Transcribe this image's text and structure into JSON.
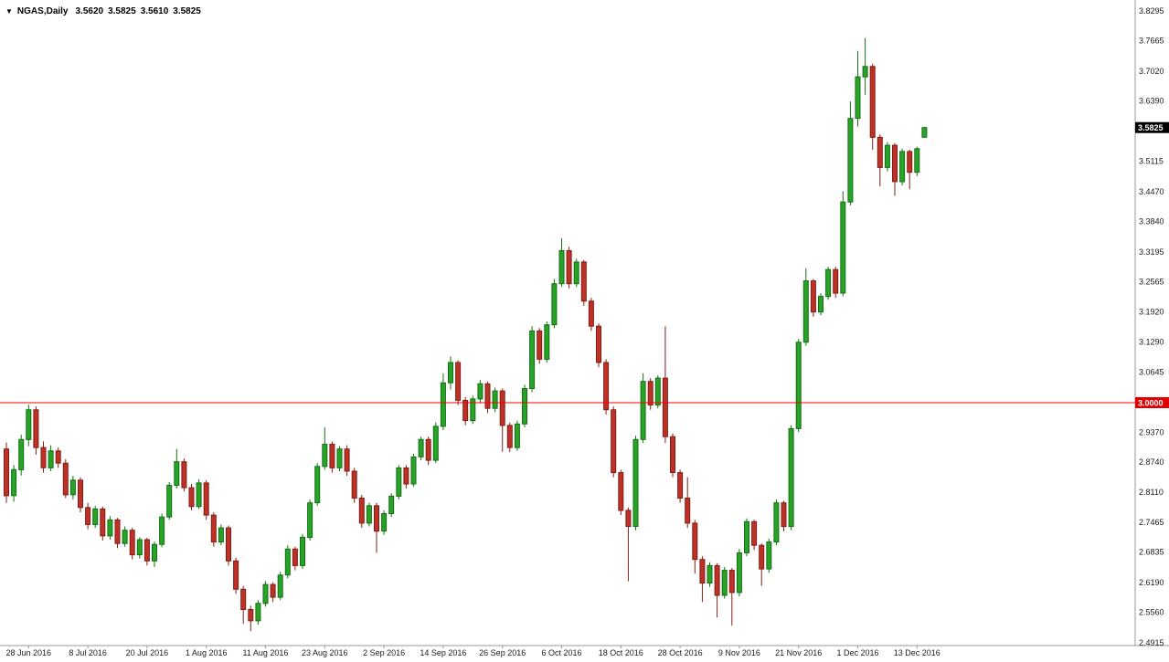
{
  "window": {
    "background": "#ffffff"
  },
  "icons": {
    "symbol_dropdown": "▼"
  },
  "quote_bar": {
    "symbol_period": "NGAS,Daily",
    "open": "3.5620",
    "high": "3.5825",
    "low": "3.5610",
    "close": "3.5825"
  },
  "current_price_tag": {
    "price": 3.5825,
    "label": "3.5825"
  },
  "horizontal_line": {
    "price": 3.0,
    "label": "3.0000"
  },
  "colors": {
    "background": "#ffffff",
    "bull_fill": "#27a327",
    "bull_border": "#156f15",
    "bear_fill": "#bf3126",
    "bear_border": "#7e1f17",
    "axis_line": "#9a9a9a",
    "axis_text": "#1a1a1a",
    "quote_text": "#000000",
    "hline": "#f40000",
    "hline_tag_bg": "#e00000",
    "hline_tag_text": "#ffffff",
    "current_price_bg": "#000000",
    "current_price_text": "#ffffff"
  },
  "chart_data": {
    "type": "candlestick",
    "title": "NGAS Daily",
    "symbol": "NGAS",
    "timeframe": "Daily",
    "ylim": [
      2.4915,
      3.8295
    ],
    "grid": false,
    "y_ticks": [
      "3.8295",
      "3.7665",
      "3.7020",
      "3.6390",
      "3.5115",
      "3.4470",
      "3.3840",
      "3.3195",
      "3.2565",
      "3.1920",
      "3.1290",
      "3.0645",
      "2.9370",
      "2.8740",
      "2.8110",
      "2.7465",
      "2.6835",
      "2.6190",
      "2.5560",
      "2.4915"
    ],
    "x_ticks": [
      {
        "label": "28 Jun 2016",
        "candle_index": 3
      },
      {
        "label": "8 Jul 2016",
        "candle_index": 11
      },
      {
        "label": "20 Jul 2016",
        "candle_index": 19
      },
      {
        "label": "1 Aug 2016",
        "candle_index": 27
      },
      {
        "label": "11 Aug 2016",
        "candle_index": 35
      },
      {
        "label": "23 Aug 2016",
        "candle_index": 43
      },
      {
        "label": "2 Sep 2016",
        "candle_index": 51
      },
      {
        "label": "14 Sep 2016",
        "candle_index": 59
      },
      {
        "label": "26 Sep 2016",
        "candle_index": 67
      },
      {
        "label": "6 Oct 2016",
        "candle_index": 75
      },
      {
        "label": "18 Oct 2016",
        "candle_index": 83
      },
      {
        "label": "28 Oct 2016",
        "candle_index": 91
      },
      {
        "label": "9 Nov 2016",
        "candle_index": 99
      },
      {
        "label": "21 Nov 2016",
        "candle_index": 107
      },
      {
        "label": "1 Dec 2016",
        "candle_index": 115
      },
      {
        "label": "13 Dec 2016",
        "candle_index": 123
      }
    ],
    "columns": [
      "date",
      "open",
      "high",
      "low",
      "close"
    ],
    "candles": [
      [
        "2016-06-23",
        2.902,
        2.916,
        2.788,
        2.803
      ],
      [
        "2016-06-24",
        2.803,
        2.868,
        2.79,
        2.858
      ],
      [
        "2016-06-27",
        2.858,
        2.932,
        2.846,
        2.922
      ],
      [
        "2016-06-28",
        2.922,
        2.996,
        2.908,
        2.985
      ],
      [
        "2016-06-29",
        2.985,
        2.992,
        2.89,
        2.905
      ],
      [
        "2016-06-30",
        2.905,
        2.918,
        2.852,
        2.862
      ],
      [
        "2016-07-01",
        2.862,
        2.91,
        2.855,
        2.898
      ],
      [
        "2016-07-04",
        2.898,
        2.905,
        2.862,
        2.872
      ],
      [
        "2016-07-05",
        2.872,
        2.88,
        2.798,
        2.805
      ],
      [
        "2016-07-06",
        2.805,
        2.845,
        2.795,
        2.836
      ],
      [
        "2016-07-07",
        2.836,
        2.842,
        2.768,
        2.778
      ],
      [
        "2016-07-08",
        2.778,
        2.788,
        2.732,
        2.742
      ],
      [
        "2016-07-11",
        2.742,
        2.782,
        2.735,
        2.775
      ],
      [
        "2016-07-12",
        2.775,
        2.78,
        2.708,
        2.718
      ],
      [
        "2016-07-13",
        2.718,
        2.76,
        2.71,
        2.752
      ],
      [
        "2016-07-14",
        2.752,
        2.756,
        2.692,
        2.702
      ],
      [
        "2016-07-15",
        2.702,
        2.738,
        2.695,
        2.73
      ],
      [
        "2016-07-18",
        2.73,
        2.735,
        2.668,
        2.678
      ],
      [
        "2016-07-19",
        2.678,
        2.715,
        2.67,
        2.71
      ],
      [
        "2016-07-20",
        2.71,
        2.714,
        2.655,
        2.665
      ],
      [
        "2016-07-21",
        2.665,
        2.706,
        2.652,
        2.7
      ],
      [
        "2016-07-22",
        2.7,
        2.765,
        2.694,
        2.758
      ],
      [
        "2016-07-25",
        2.758,
        2.832,
        2.752,
        2.825
      ],
      [
        "2016-07-26",
        2.825,
        2.902,
        2.818,
        2.875
      ],
      [
        "2016-07-27",
        2.875,
        2.882,
        2.812,
        2.82
      ],
      [
        "2016-07-28",
        2.82,
        2.828,
        2.772,
        2.78
      ],
      [
        "2016-07-29",
        2.78,
        2.838,
        2.775,
        2.83
      ],
      [
        "2016-08-01",
        2.83,
        2.836,
        2.752,
        2.762
      ],
      [
        "2016-08-02",
        2.762,
        2.768,
        2.695,
        2.705
      ],
      [
        "2016-08-03",
        2.705,
        2.742,
        2.698,
        2.735
      ],
      [
        "2016-08-04",
        2.735,
        2.74,
        2.655,
        2.665
      ],
      [
        "2016-08-05",
        2.665,
        2.672,
        2.595,
        2.605
      ],
      [
        "2016-08-08",
        2.605,
        2.612,
        2.532,
        2.562
      ],
      [
        "2016-08-09",
        2.562,
        2.57,
        2.516,
        2.538
      ],
      [
        "2016-08-10",
        2.538,
        2.582,
        2.53,
        2.575
      ],
      [
        "2016-08-11",
        2.575,
        2.622,
        2.568,
        2.615
      ],
      [
        "2016-08-12",
        2.615,
        2.62,
        2.578,
        2.588
      ],
      [
        "2016-08-15",
        2.588,
        2.642,
        2.582,
        2.635
      ],
      [
        "2016-08-16",
        2.635,
        2.698,
        2.628,
        2.69
      ],
      [
        "2016-08-17",
        2.69,
        2.695,
        2.645,
        2.655
      ],
      [
        "2016-08-18",
        2.655,
        2.722,
        2.648,
        2.715
      ],
      [
        "2016-08-19",
        2.715,
        2.795,
        2.708,
        2.788
      ],
      [
        "2016-08-22",
        2.788,
        2.872,
        2.782,
        2.865
      ],
      [
        "2016-08-23",
        2.865,
        2.948,
        2.858,
        2.912
      ],
      [
        "2016-08-24",
        2.912,
        2.918,
        2.852,
        2.862
      ],
      [
        "2016-08-25",
        2.862,
        2.908,
        2.855,
        2.902
      ],
      [
        "2016-08-26",
        2.902,
        2.91,
        2.845,
        2.855
      ],
      [
        "2016-08-29",
        2.855,
        2.862,
        2.788,
        2.798
      ],
      [
        "2016-08-30",
        2.798,
        2.805,
        2.735,
        2.745
      ],
      [
        "2016-08-31",
        2.745,
        2.788,
        2.738,
        2.782
      ],
      [
        "2016-09-01",
        2.782,
        2.788,
        2.682,
        2.728
      ],
      [
        "2016-09-02",
        2.728,
        2.772,
        2.72,
        2.765
      ],
      [
        "2016-09-05",
        2.765,
        2.808,
        2.758,
        2.802
      ],
      [
        "2016-09-06",
        2.802,
        2.868,
        2.795,
        2.862
      ],
      [
        "2016-09-07",
        2.862,
        2.868,
        2.818,
        2.828
      ],
      [
        "2016-09-08",
        2.828,
        2.892,
        2.822,
        2.885
      ],
      [
        "2016-09-09",
        2.885,
        2.928,
        2.878,
        2.922
      ],
      [
        "2016-09-12",
        2.922,
        2.928,
        2.868,
        2.878
      ],
      [
        "2016-09-13",
        2.878,
        2.958,
        2.872,
        2.95
      ],
      [
        "2016-09-14",
        2.95,
        3.062,
        2.942,
        3.042
      ],
      [
        "2016-09-15",
        3.042,
        3.098,
        3.028,
        3.085
      ],
      [
        "2016-09-16",
        3.085,
        3.09,
        2.995,
        3.005
      ],
      [
        "2016-09-19",
        3.005,
        3.012,
        2.952,
        2.962
      ],
      [
        "2016-09-20",
        2.962,
        3.015,
        2.955,
        3.008
      ],
      [
        "2016-09-21",
        3.008,
        3.048,
        3.0,
        3.04
      ],
      [
        "2016-09-22",
        3.04,
        3.045,
        2.978,
        2.988
      ],
      [
        "2016-09-23",
        2.988,
        3.032,
        2.98,
        3.025
      ],
      [
        "2016-09-26",
        3.025,
        3.03,
        2.896,
        2.952
      ],
      [
        "2016-09-27",
        2.952,
        2.958,
        2.895,
        2.905
      ],
      [
        "2016-09-28",
        2.905,
        2.962,
        2.898,
        2.955
      ],
      [
        "2016-09-29",
        2.955,
        3.038,
        2.948,
        3.03
      ],
      [
        "2016-09-30",
        3.03,
        3.162,
        3.022,
        3.152
      ],
      [
        "2016-10-03",
        3.152,
        3.158,
        3.082,
        3.092
      ],
      [
        "2016-10-04",
        3.092,
        3.172,
        3.085,
        3.165
      ],
      [
        "2016-10-05",
        3.165,
        3.262,
        3.158,
        3.252
      ],
      [
        "2016-10-06",
        3.252,
        3.348,
        3.245,
        3.322
      ],
      [
        "2016-10-07",
        3.322,
        3.33,
        3.242,
        3.252
      ],
      [
        "2016-10-10",
        3.252,
        3.305,
        3.245,
        3.298
      ],
      [
        "2016-10-11",
        3.298,
        3.302,
        3.205,
        3.215
      ],
      [
        "2016-10-12",
        3.215,
        3.222,
        3.152,
        3.162
      ],
      [
        "2016-10-13",
        3.162,
        3.168,
        3.075,
        3.085
      ],
      [
        "2016-10-14",
        3.085,
        3.092,
        2.975,
        2.985
      ],
      [
        "2016-10-17",
        2.985,
        2.992,
        2.842,
        2.852
      ],
      [
        "2016-10-18",
        2.852,
        2.858,
        2.762,
        2.772
      ],
      [
        "2016-10-19",
        2.772,
        2.778,
        2.622,
        2.738
      ],
      [
        "2016-10-20",
        2.738,
        2.93,
        2.73,
        2.922
      ],
      [
        "2016-10-21",
        2.922,
        3.062,
        2.915,
        3.045
      ],
      [
        "2016-10-24",
        3.045,
        3.052,
        2.985,
        2.995
      ],
      [
        "2016-10-25",
        2.995,
        3.058,
        2.988,
        3.052
      ],
      [
        "2016-10-26",
        3.052,
        3.162,
        2.915,
        2.928
      ],
      [
        "2016-10-27",
        2.928,
        2.935,
        2.842,
        2.852
      ],
      [
        "2016-10-28",
        2.852,
        2.858,
        2.788,
        2.798
      ],
      [
        "2016-10-31",
        2.798,
        2.842,
        2.735,
        2.745
      ],
      [
        "2016-11-01",
        2.745,
        2.752,
        2.638,
        2.668
      ],
      [
        "2016-11-02",
        2.668,
        2.675,
        2.578,
        2.618
      ],
      [
        "2016-11-03",
        2.618,
        2.662,
        2.61,
        2.655
      ],
      [
        "2016-11-04",
        2.655,
        2.66,
        2.545,
        2.592
      ],
      [
        "2016-11-07",
        2.592,
        2.652,
        2.585,
        2.645
      ],
      [
        "2016-11-08",
        2.645,
        2.65,
        2.528,
        2.598
      ],
      [
        "2016-11-09",
        2.598,
        2.69,
        2.59,
        2.682
      ],
      [
        "2016-11-10",
        2.682,
        2.755,
        2.675,
        2.748
      ],
      [
        "2016-11-11",
        2.748,
        2.752,
        2.688,
        2.698
      ],
      [
        "2016-11-14",
        2.698,
        2.702,
        2.612,
        2.648
      ],
      [
        "2016-11-15",
        2.648,
        2.712,
        2.64,
        2.705
      ],
      [
        "2016-11-16",
        2.705,
        2.795,
        2.698,
        2.788
      ],
      [
        "2016-11-17",
        2.788,
        2.792,
        2.728,
        2.738
      ],
      [
        "2016-11-18",
        2.738,
        2.952,
        2.73,
        2.945
      ],
      [
        "2016-11-21",
        2.945,
        3.135,
        2.938,
        3.128
      ],
      [
        "2016-11-22",
        3.128,
        3.285,
        3.12,
        3.258
      ],
      [
        "2016-11-23",
        3.258,
        3.262,
        3.182,
        3.192
      ],
      [
        "2016-11-24",
        3.192,
        3.232,
        3.185,
        3.225
      ],
      [
        "2016-11-25",
        3.225,
        3.288,
        3.218,
        3.282
      ],
      [
        "2016-11-28",
        3.282,
        3.288,
        3.222,
        3.232
      ],
      [
        "2016-11-29",
        3.232,
        3.448,
        3.225,
        3.425
      ],
      [
        "2016-11-30",
        3.425,
        3.638,
        3.418,
        3.602
      ],
      [
        "2016-12-01",
        3.602,
        3.745,
        3.585,
        3.69
      ],
      [
        "2016-12-02",
        3.69,
        3.772,
        3.652,
        3.712
      ],
      [
        "2016-12-05",
        3.712,
        3.718,
        3.535,
        3.562
      ],
      [
        "2016-12-06",
        3.562,
        3.568,
        3.458,
        3.498
      ],
      [
        "2016-12-07",
        3.498,
        3.552,
        3.49,
        3.545
      ],
      [
        "2016-12-08",
        3.545,
        3.55,
        3.438,
        3.468
      ],
      [
        "2016-12-09",
        3.468,
        3.538,
        3.46,
        3.532
      ],
      [
        "2016-12-12",
        3.532,
        3.536,
        3.452,
        3.488
      ],
      [
        "2016-12-13",
        3.488,
        3.542,
        3.48,
        3.538
      ],
      [
        "2016-12-14",
        3.562,
        3.5825,
        3.561,
        3.5825
      ]
    ]
  }
}
